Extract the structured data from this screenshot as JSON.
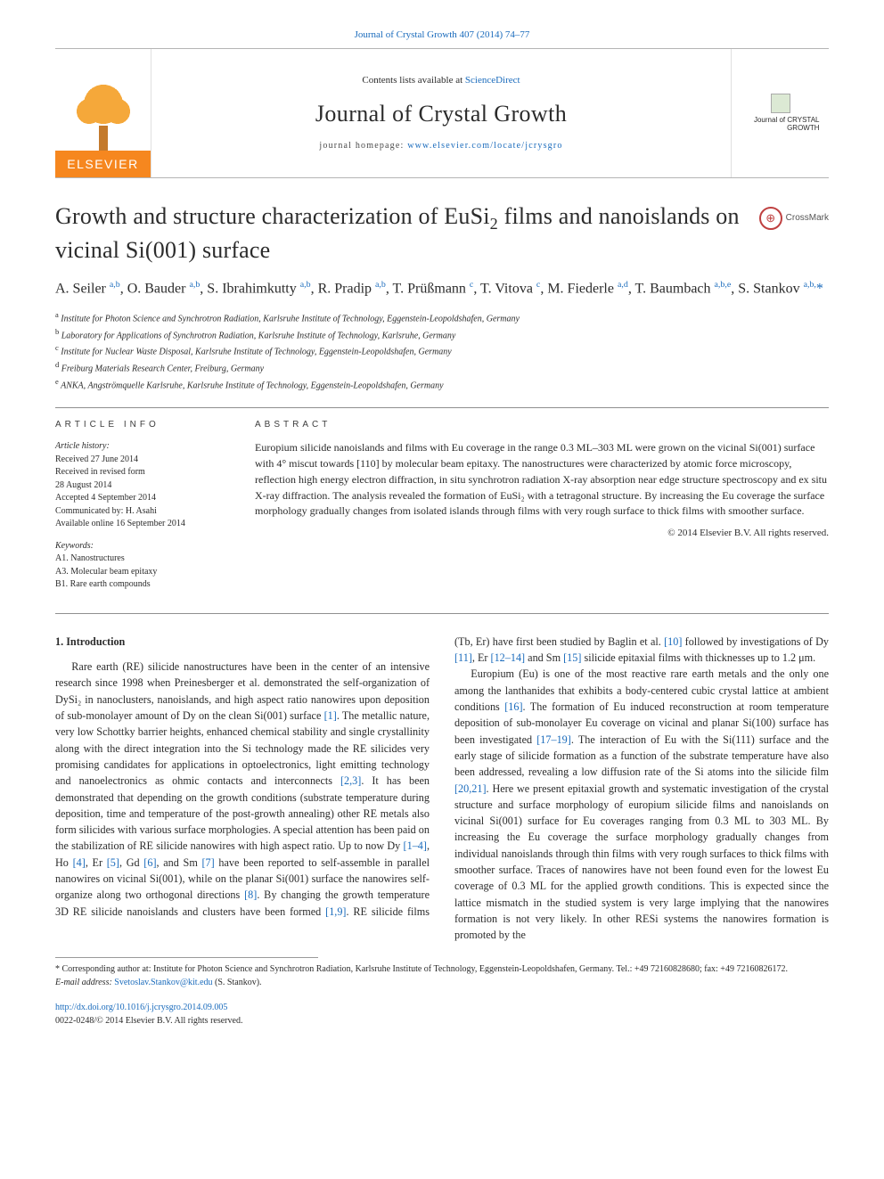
{
  "header": {
    "journal_ref": "Journal of Crystal Growth 407 (2014) 74–77",
    "contents_line_prefix": "Contents lists available at ",
    "sciencedirect": "ScienceDirect",
    "journal_title": "Journal of Crystal Growth",
    "homepage_prefix": "journal homepage: ",
    "homepage_url": "www.elsevier.com/locate/jcrysgro",
    "elsevier_label": "ELSEVIER",
    "cover_small_text": "Journal of CRYSTAL GROWTH"
  },
  "crossmark": {
    "label": "CrossMark",
    "glyph": "⊕"
  },
  "article": {
    "title_part1": "Growth and structure characterization of EuSi",
    "title_sub": "2",
    "title_part2": " films and nanoislands on vicinal Si(001) surface",
    "authors_html": "A. Seiler <sup>a,b</sup>, O. Bauder <sup>a,b</sup>, S. Ibrahimkutty <sup>a,b</sup>, R. Pradip <sup>a,b</sup>, T. Prüßmann <sup>c</sup>, T. Vitova <sup>c</sup>, M. Fiederle <sup>a,d</sup>, T. Baumbach <sup>a,b,e</sup>, S. Stankov <sup>a,b,</sup><span class='asterisk'>*</span>",
    "affiliations": [
      "a Institute for Photon Science and Synchrotron Radiation, Karlsruhe Institute of Technology, Eggenstein-Leopoldshafen, Germany",
      "b Laboratory for Applications of Synchrotron Radiation, Karlsruhe Institute of Technology, Karlsruhe, Germany",
      "c Institute for Nuclear Waste Disposal, Karlsruhe Institute of Technology, Eggenstein-Leopoldshafen, Germany",
      "d Freiburg Materials Research Center, Freiburg, Germany",
      "e ANKA, Angströmquelle Karlsruhe, Karlsruhe Institute of Technology, Eggenstein-Leopoldshafen, Germany"
    ]
  },
  "info": {
    "heading": "ARTICLE INFO",
    "history_label": "Article history:",
    "history": [
      "Received 27 June 2014",
      "Received in revised form",
      "28 August 2014",
      "Accepted 4 September 2014",
      "Communicated by: H. Asahi",
      "Available online 16 September 2014"
    ],
    "keywords_label": "Keywords:",
    "keywords": [
      "A1. Nanostructures",
      "A3. Molecular beam epitaxy",
      "B1. Rare earth compounds"
    ]
  },
  "abstract": {
    "heading": "ABSTRACT",
    "body": "Europium silicide nanoislands and films with Eu coverage in the range 0.3 ML–303 ML were grown on the vicinal Si(001) surface with 4° miscut towards [110] by molecular beam epitaxy. The nanostructures were characterized by atomic force microscopy, reflection high energy electron diffraction, in situ synchrotron radiation X-ray absorption near edge structure spectroscopy and ex situ X-ray diffraction. The analysis revealed the formation of EuSi₂ with a tetragonal structure. By increasing the Eu coverage the surface morphology gradually changes from isolated islands through films with very rough surface to thick films with smoother surface.",
    "copyright": "© 2014 Elsevier B.V. All rights reserved."
  },
  "body": {
    "section_heading": "1. Introduction",
    "para1_pre": "Rare earth (RE) silicide nanostructures have been in the center of an intensive research since 1998 when Preinesberger et al. demonstrated the self-organization of DySi₂ in nanoclusters, nanoislands, and high aspect ratio nanowires upon deposition of sub-monolayer amount of Dy on the clean Si(001) surface ",
    "ref1": "[1]",
    "para1_mid1": ". The metallic nature, very low Schottky barrier heights, enhanced chemical stability and single crystallinity along with the direct integration into the Si technology made the RE silicides very promising candidates for applications in optoelectronics, light emitting technology and nanoelectronics as ohmic contacts and interconnects ",
    "ref23": "[2,3]",
    "para1_mid2": ". It has been demonstrated that depending on the growth conditions (substrate temperature during deposition, time and temperature of the post-growth annealing) other RE metals also form silicides with various surface morphologies. A special attention has been paid on the stabilization of RE silicide nanowires with high aspect ratio. Up to now Dy ",
    "ref14": "[1–4]",
    "para1_seg_ho": ", Ho ",
    "ref4": "[4]",
    "para1_seg_er": ", Er ",
    "ref5": "[5]",
    "para1_seg_gd": ", Gd ",
    "ref6": "[6]",
    "para1_seg_sm": ", and Sm ",
    "ref7": "[7]",
    "para1_tail": " have been reported to self-assemble in parallel nanowires on vicinal Si(001), while on the planar Si(001) surface the nanowires self-organize along two orthogonal directions ",
    "ref8": "[8]",
    "para1_tail2": ". By changing the growth temperature 3D RE silicide nanoislands and clusters have been formed ",
    "ref19": "[1,9]",
    "para1_tail3": ". RE silicide films (Tb, Er) have first been studied by Baglin et al. ",
    "ref10": "[10]",
    "para1_tail4": " followed by investigations of Dy ",
    "ref11": "[11]",
    "para1_seg_er2": ", Er ",
    "ref1214": "[12–14]",
    "para1_seg_sm2": " and Sm ",
    "ref15": "[15]",
    "para1_tail5": " silicide epitaxial films with thicknesses up to 1.2 μm.",
    "para2_pre": "Europium (Eu) is one of the most reactive rare earth metals and the only one among the lanthanides that exhibits a body-centered cubic crystal lattice at ambient conditions ",
    "ref16": "[16]",
    "para2_mid1": ". The formation of Eu induced reconstruction at room temperature deposition of sub-monolayer Eu coverage on vicinal and planar Si(100) surface has been investigated ",
    "ref1719": "[17–19]",
    "para2_mid2": ". The interaction of Eu with the Si(111) surface and the early stage of silicide formation as a function of the substrate temperature have also been addressed, revealing a low diffusion rate of the Si atoms into the silicide film ",
    "ref2021": "[20,21]",
    "para2_tail": ". Here we present epitaxial growth and systematic investigation of the crystal structure and surface morphology of europium silicide films and nanoislands on vicinal Si(001) surface for Eu coverages ranging from 0.3 ML to 303 ML. By increasing the Eu coverage the surface morphology gradually changes from individual nanoislands through thin films with very rough surfaces to thick films with smoother surface. Traces of nanowires have not been found even for the lowest Eu coverage of 0.3 ML for the applied growth conditions. This is expected since the lattice mismatch in the studied system is very large implying that the nanowires formation is not very likely. In other RESi systems the nanowires formation is promoted by the"
  },
  "footnotes": {
    "corresponding": "* Corresponding author at: Institute for Photon Science and Synchrotron Radiation, Karlsruhe Institute of Technology, Eggenstein-Leopoldshafen, Germany. Tel.: +49 72160828680; fax: +49 72160826172.",
    "email_label": "E-mail address: ",
    "email": "Svetoslav.Stankov@kit.edu",
    "email_tail": " (S. Stankov)."
  },
  "doi": {
    "url": "http://dx.doi.org/10.1016/j.jcrysgro.2014.09.005",
    "issn_line": "0022-0248/© 2014 Elsevier B.V. All rights reserved."
  },
  "colors": {
    "link": "#1a6bbc",
    "elsevier_orange": "#f6871f",
    "rule": "#8f8f8f"
  }
}
